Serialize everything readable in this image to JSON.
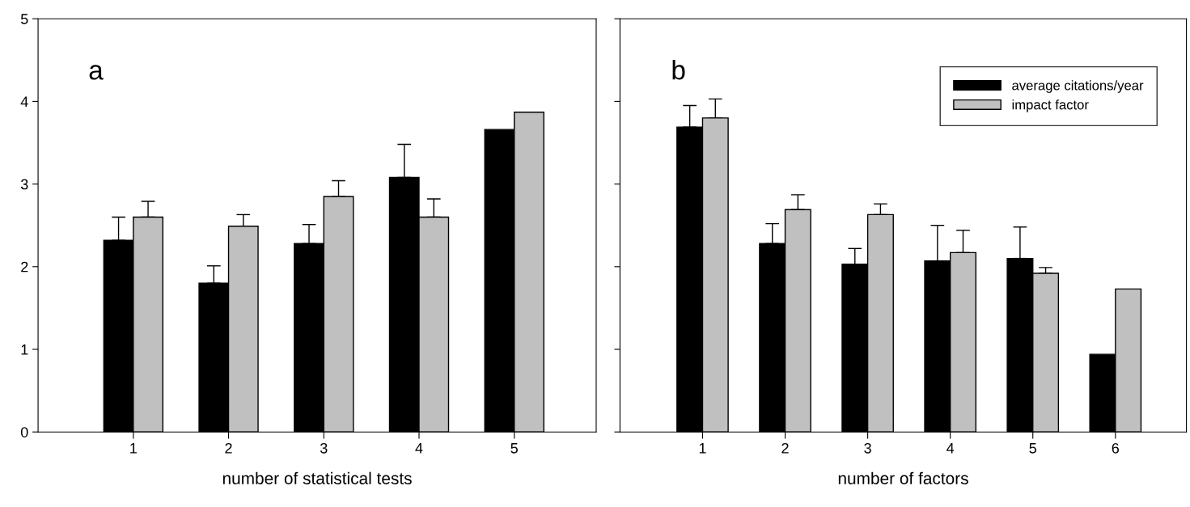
{
  "chart_data": [
    {
      "type": "bar",
      "xlabel": "number of statistical tests",
      "annotations": [
        "a"
      ],
      "categories": [
        "1",
        "2",
        "3",
        "4",
        "5"
      ],
      "ylim": [
        0,
        5
      ],
      "yticks": [
        0,
        1,
        2,
        3,
        4,
        5
      ],
      "grid": false,
      "legend": false,
      "series": [
        {
          "color": "#000000",
          "values": [
            2.32,
            1.8,
            2.28,
            3.08,
            3.66
          ],
          "errors": [
            [
              2.32,
              2.6
            ],
            [
              1.8,
              2.01
            ],
            [
              2.28,
              2.51
            ],
            [
              3.08,
              3.48
            ],
            null
          ]
        },
        {
          "color": "#c0c0c0",
          "values": [
            2.6,
            2.49,
            2.85,
            2.6,
            3.87
          ],
          "errors": [
            [
              2.6,
              2.79
            ],
            [
              2.49,
              2.63
            ],
            [
              2.85,
              3.04
            ],
            [
              2.6,
              2.82
            ],
            null
          ]
        }
      ]
    },
    {
      "type": "bar",
      "xlabel": "number of factors",
      "annotations": [
        "b"
      ],
      "categories": [
        "1",
        "2",
        "3",
        "4",
        "5",
        "6"
      ],
      "ylim": [
        0,
        5
      ],
      "yticks": [
        0,
        1,
        2,
        3,
        4,
        5
      ],
      "tick_labels": "x",
      "grid": false,
      "legend": "top right",
      "series": [
        {
          "name": "average citations/year",
          "color": "#000000",
          "values": [
            3.69,
            2.28,
            2.03,
            2.07,
            2.1,
            0.94
          ],
          "errors": [
            [
              3.69,
              3.95
            ],
            [
              2.28,
              2.52
            ],
            [
              2.03,
              2.22
            ],
            [
              2.07,
              2.5
            ],
            [
              2.1,
              2.48
            ],
            null
          ]
        },
        {
          "name": "impact factor",
          "color": "#c0c0c0",
          "values": [
            3.8,
            2.69,
            2.63,
            2.17,
            1.92,
            1.73
          ],
          "errors": [
            [
              3.8,
              4.03
            ],
            [
              2.69,
              2.87
            ],
            [
              2.63,
              2.76
            ],
            [
              2.17,
              2.44
            ],
            [
              1.92,
              1.99
            ],
            null
          ]
        }
      ]
    }
  ]
}
